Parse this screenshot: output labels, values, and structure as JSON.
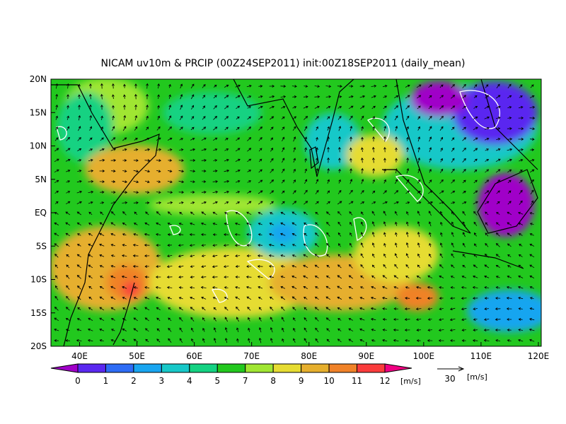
{
  "title": "NICAM uv10m & PRCIP (00Z24SEP2011) init:00Z18SEP2011 (daily_mean)",
  "lat_labels": [
    "20N",
    "15N",
    "10N",
    "5N",
    "EQ",
    "5S",
    "10S",
    "15S",
    "20S"
  ],
  "lon_labels": [
    "40E",
    "50E",
    "60E",
    "70E",
    "80E",
    "90E",
    "100E",
    "110E",
    "120E"
  ],
  "colorbar": {
    "labels": [
      0,
      1,
      2,
      3,
      4,
      5,
      7,
      8,
      9,
      10,
      11,
      12
    ],
    "colors": [
      "#a000c8",
      "#5a28f0",
      "#2e6cf5",
      "#19a5f0",
      "#17c8c8",
      "#14d282",
      "#22c81e",
      "#a0e632",
      "#e6dc32",
      "#e6af2d",
      "#f08228",
      "#fa3c3c",
      "#f00082"
    ],
    "unit": "[m/s]"
  },
  "reference_vector": {
    "value": 30,
    "unit": "[m/s]"
  }
}
